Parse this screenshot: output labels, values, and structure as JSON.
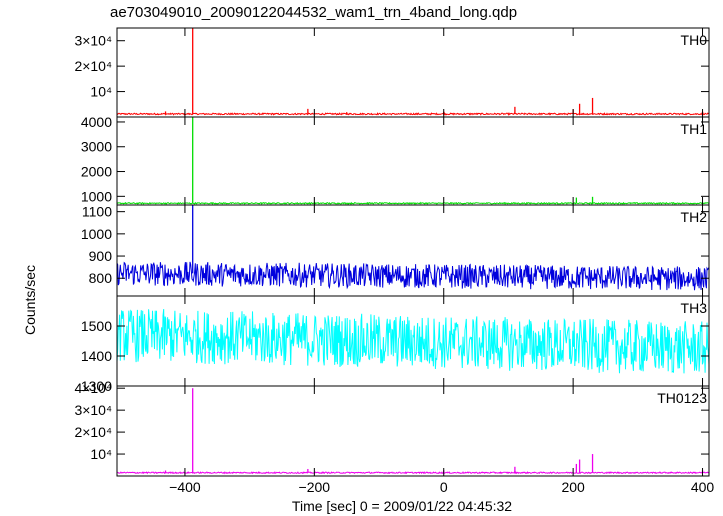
{
  "title": "ae703049010_20090122044532_wam1_trn_4band_long.qdp",
  "chart_data": {
    "type": "line",
    "title": "ae703049010_20090122044532_wam1_trn_4band_long.qdp",
    "xlabel": "Time [sec] 0 = 2009/01/22 04:45:32",
    "ylabel": "Counts/sec",
    "xlim": [
      -505,
      410
    ],
    "x_ticks": [
      -400,
      -200,
      0,
      200,
      400
    ],
    "x_tick_labels": [
      "−400",
      "−200",
      "0",
      "200",
      "400"
    ],
    "panels": [
      {
        "name": "TH0",
        "color": "#ff0000",
        "ylim": [
          0,
          35000
        ],
        "y_ticks": [
          10000,
          20000,
          30000
        ],
        "y_tick_labels": [
          "10⁴",
          "2×10⁴",
          "3×10⁴"
        ],
        "baseline": 1200,
        "noise": 300,
        "spikes": [
          {
            "x": -388,
            "y": 35000
          },
          {
            "x": -430,
            "y": 2200
          },
          {
            "x": -210,
            "y": 3200
          },
          {
            "x": -150,
            "y": 1900
          },
          {
            "x": 0,
            "y": 2100
          },
          {
            "x": 110,
            "y": 4000
          },
          {
            "x": 200,
            "y": 3000
          },
          {
            "x": 210,
            "y": 5200
          },
          {
            "x": 230,
            "y": 7500
          },
          {
            "x": 400,
            "y": 2100
          }
        ]
      },
      {
        "name": "TH1",
        "color": "#00dd00",
        "ylim": [
          650,
          4200
        ],
        "y_ticks": [
          1000,
          2000,
          3000,
          4000
        ],
        "y_tick_labels": [
          "1000",
          "2000",
          "3000",
          "4000"
        ],
        "baseline": 720,
        "noise": 25,
        "spikes": [
          {
            "x": -388,
            "y": 4200
          },
          {
            "x": 205,
            "y": 950
          },
          {
            "x": 230,
            "y": 980
          }
        ]
      },
      {
        "name": "TH2",
        "color": "#0000dd",
        "ylim": [
          720,
          1130
        ],
        "y_ticks": [
          800,
          900,
          1000,
          1100
        ],
        "y_tick_labels": [
          "800",
          "900",
          "1000",
          "1100"
        ],
        "baseline_start": 822,
        "baseline_end": 798,
        "noise": 55,
        "spikes": [
          {
            "x": -388,
            "y": 1130
          }
        ]
      },
      {
        "name": "TH3",
        "color": "#00ffff",
        "ylim": [
          1300,
          1600
        ],
        "y_ticks": [
          1300,
          1400,
          1500
        ],
        "y_tick_labels": [
          "1300",
          "1400",
          "1500"
        ],
        "baseline_start": 1470,
        "baseline_end": 1425,
        "noise": 90,
        "spikes": []
      },
      {
        "name": "TH0123",
        "color": "#ee00ee",
        "ylim": [
          0,
          41000
        ],
        "y_ticks": [
          10000,
          20000,
          30000,
          40000
        ],
        "y_tick_labels": [
          "10⁴",
          "2×10⁴",
          "3×10⁴",
          "4×10⁴"
        ],
        "baseline": 1500,
        "noise": 300,
        "spikes": [
          {
            "x": -388,
            "y": 40000
          },
          {
            "x": -430,
            "y": 2500
          },
          {
            "x": -210,
            "y": 3200
          },
          {
            "x": 0,
            "y": 2600
          },
          {
            "x": 110,
            "y": 4200
          },
          {
            "x": 205,
            "y": 5500
          },
          {
            "x": 210,
            "y": 7500
          },
          {
            "x": 230,
            "y": 10000
          },
          {
            "x": 400,
            "y": 2600
          }
        ]
      }
    ]
  }
}
